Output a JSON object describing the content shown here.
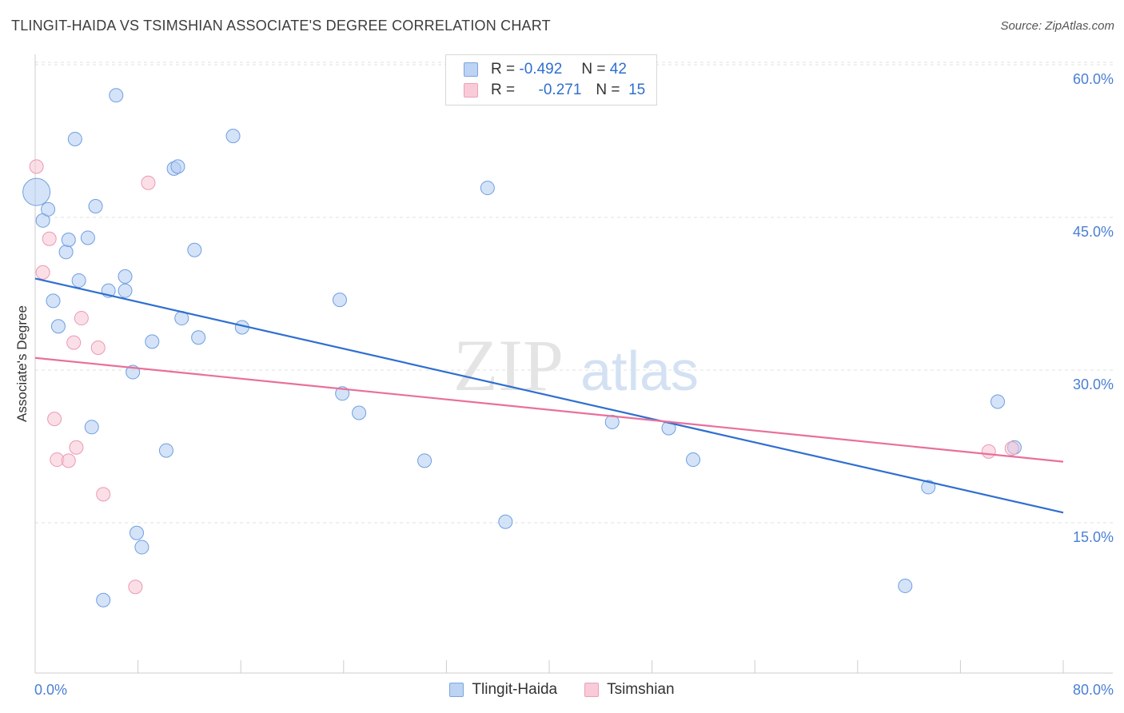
{
  "title": "TLINGIT-HAIDA VS TSIMSHIAN ASSOCIATE'S DEGREE CORRELATION CHART",
  "source": "Source: ZipAtlas.com",
  "watermark": {
    "zip": "ZIP",
    "atlas": "atlas"
  },
  "legend": {
    "r_label": "R =",
    "n_label": "N =",
    "rows": [
      {
        "r": "-0.492",
        "n": "42"
      },
      {
        "r": "-0.271",
        "n": "15"
      }
    ]
  },
  "chart_data": {
    "type": "scatter",
    "title": "TLINGIT-HAIDA VS TSIMSHIAN ASSOCIATE'S DEGREE CORRELATION CHART",
    "xlabel": "",
    "ylabel": "Associate's Degree",
    "xlim": [
      0,
      80
    ],
    "ylim": [
      0,
      63
    ],
    "x_tick_labels": [
      "0.0%",
      "80.0%"
    ],
    "y_ticks": [
      15,
      30,
      45,
      60
    ],
    "y_tick_labels": [
      "15.0%",
      "30.0%",
      "45.0%",
      "60.0%"
    ],
    "grid": true,
    "colors": {
      "blue": "#2f6fd0",
      "pink": "#e8709a",
      "tick": "#4a7fd4"
    },
    "series": [
      {
        "name": "Tlingit-Haida",
        "color": "#2f6fd0",
        "trend": {
          "x0": 0,
          "y0": 39.0,
          "x1": 80,
          "y1": 16.0
        },
        "points": [
          [
            0.1,
            47.5,
            "large"
          ],
          [
            0.6,
            44.7
          ],
          [
            1.0,
            45.8
          ],
          [
            1.4,
            36.8
          ],
          [
            1.8,
            34.3
          ],
          [
            2.4,
            41.6
          ],
          [
            2.6,
            42.8
          ],
          [
            3.1,
            52.7
          ],
          [
            3.4,
            38.8
          ],
          [
            4.1,
            43.0
          ],
          [
            4.4,
            24.4
          ],
          [
            4.7,
            46.1
          ],
          [
            5.3,
            7.4
          ],
          [
            5.7,
            37.8
          ],
          [
            6.3,
            57.0
          ],
          [
            7.0,
            39.2
          ],
          [
            7.0,
            37.8
          ],
          [
            7.6,
            29.8
          ],
          [
            7.9,
            14.0
          ],
          [
            8.3,
            12.6
          ],
          [
            9.1,
            32.8
          ],
          [
            10.2,
            22.1
          ],
          [
            10.8,
            49.8
          ],
          [
            11.1,
            50.0
          ],
          [
            11.4,
            35.1
          ],
          [
            12.4,
            41.8
          ],
          [
            12.7,
            33.2
          ],
          [
            15.4,
            53.0
          ],
          [
            16.1,
            34.2
          ],
          [
            23.7,
            36.9
          ],
          [
            23.9,
            27.7
          ],
          [
            25.2,
            25.8
          ],
          [
            30.3,
            21.1
          ],
          [
            35.2,
            47.9
          ],
          [
            36.6,
            15.1
          ],
          [
            44.9,
            24.9
          ],
          [
            49.3,
            24.3
          ],
          [
            51.2,
            21.2
          ],
          [
            67.7,
            8.8
          ],
          [
            69.5,
            18.5
          ],
          [
            74.9,
            26.9
          ],
          [
            76.2,
            22.4
          ]
        ]
      },
      {
        "name": "Tsimshian",
        "color": "#e8709a",
        "trend": {
          "x0": 0,
          "y0": 31.2,
          "x1": 80,
          "y1": 21.0
        },
        "points": [
          [
            0.1,
            50.0
          ],
          [
            0.6,
            39.6
          ],
          [
            1.1,
            42.9
          ],
          [
            1.5,
            25.2
          ],
          [
            1.7,
            21.2
          ],
          [
            2.6,
            21.1
          ],
          [
            3.0,
            32.7
          ],
          [
            3.2,
            22.4
          ],
          [
            3.6,
            35.1
          ],
          [
            4.9,
            32.2
          ],
          [
            5.3,
            17.8
          ],
          [
            7.8,
            8.7
          ],
          [
            8.8,
            48.4
          ],
          [
            74.2,
            22.0
          ],
          [
            76.0,
            22.3
          ]
        ]
      }
    ]
  },
  "bottom_legend": [
    {
      "label": "Tlingit-Haida"
    },
    {
      "label": "Tsimshian"
    }
  ]
}
